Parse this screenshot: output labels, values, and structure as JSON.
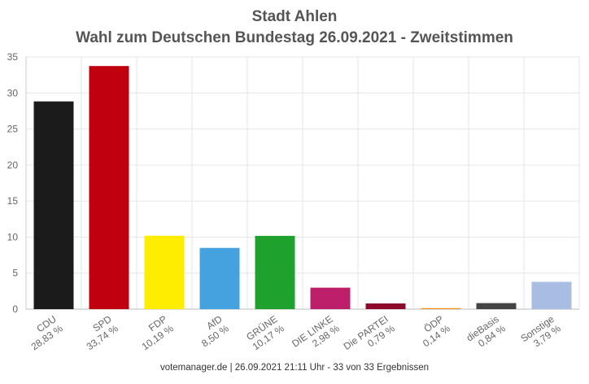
{
  "chart_data": {
    "type": "bar",
    "title": "Stadt Ahlen",
    "subtitle": "Wahl zum Deutschen Bundestag 26.09.2021  - Zweitstimmen",
    "categories": [
      "CDU",
      "SPD",
      "FDP",
      "AfD",
      "GRÜNE",
      "DIE LINKE",
      "Die PARTEI",
      "ÖDP",
      "dieBasis",
      "Sonstige"
    ],
    "value_labels": [
      "28,83 %",
      "33,74 %",
      "10,19 %",
      "8,50 %",
      "10,17 %",
      "2,98 %",
      "0,79 %",
      "0,14 %",
      "0,84 %",
      "3,79 %"
    ],
    "values": [
      28.83,
      33.74,
      10.19,
      8.5,
      10.17,
      2.98,
      0.79,
      0.14,
      0.84,
      3.79
    ],
    "colors": [
      "#1b1b1b",
      "#c0000e",
      "#ffed00",
      "#46a2de",
      "#1fa12d",
      "#bd1f6b",
      "#8e0a2b",
      "#ff8d17",
      "#444444",
      "#a9bde3"
    ],
    "ylim": [
      0,
      35
    ],
    "yticks": [
      0,
      5,
      10,
      15,
      20,
      25,
      30,
      35
    ],
    "xlabel": "",
    "ylabel": "",
    "grid": true
  },
  "footer": "votemanager.de | 26.09.2021 21:11 Uhr - 33 von 33 Ergebnissen"
}
